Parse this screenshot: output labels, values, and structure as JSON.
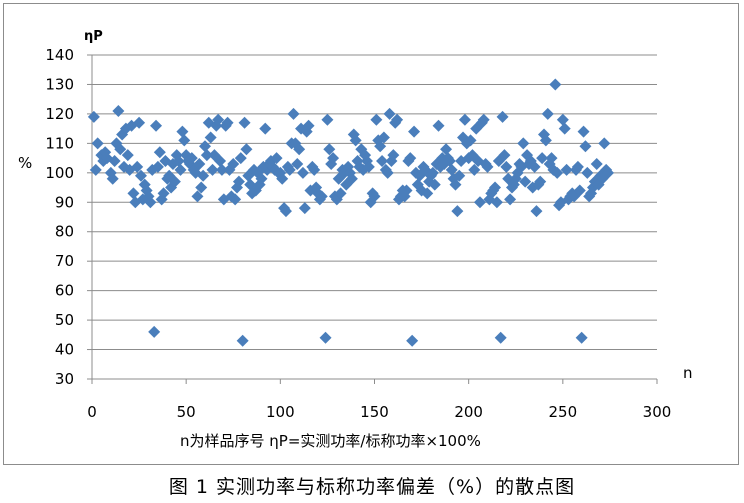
{
  "chart_data": {
    "type": "scatter",
    "title": "",
    "caption": "图 1 实测功率与标称功率偏差（%）的散点图",
    "ylabel_top": "ηP",
    "ylabel_unit": "%",
    "xlabel": "n",
    "footnote": "n为样品序号 ηP=实测功率/标称功率×100%",
    "xlim": [
      0,
      300
    ],
    "ylim": [
      30,
      140
    ],
    "xticks": [
      0,
      50,
      100,
      150,
      200,
      250,
      300
    ],
    "yticks": [
      30,
      40,
      50,
      60,
      70,
      80,
      90,
      100,
      110,
      120,
      130,
      140
    ],
    "grid": "horizontal",
    "marker_color": "#4a7ebb",
    "series": [
      {
        "points": [
          [
            1,
            119
          ],
          [
            2,
            101
          ],
          [
            3,
            110
          ],
          [
            5,
            106
          ],
          [
            6,
            104
          ],
          [
            7,
            107
          ],
          [
            8,
            105
          ],
          [
            10,
            100
          ],
          [
            11,
            98
          ],
          [
            12,
            104
          ],
          [
            13,
            110
          ],
          [
            14,
            121
          ],
          [
            15,
            108
          ],
          [
            16,
            113
          ],
          [
            17,
            102
          ],
          [
            18,
            115
          ],
          [
            19,
            106
          ],
          [
            20,
            101
          ],
          [
            21,
            116
          ],
          [
            22,
            93
          ],
          [
            23,
            90
          ],
          [
            24,
            102
          ],
          [
            25,
            117
          ],
          [
            26,
            99
          ],
          [
            27,
            91
          ],
          [
            28,
            96
          ],
          [
            29,
            94
          ],
          [
            30,
            92
          ],
          [
            31,
            90
          ],
          [
            32,
            101
          ],
          [
            33,
            46
          ],
          [
            34,
            116
          ],
          [
            35,
            102
          ],
          [
            36,
            107
          ],
          [
            37,
            91
          ],
          [
            38,
            93
          ],
          [
            39,
            104
          ],
          [
            40,
            98
          ],
          [
            41,
            99
          ],
          [
            42,
            95
          ],
          [
            43,
            103
          ],
          [
            44,
            97
          ],
          [
            45,
            106
          ],
          [
            46,
            104
          ],
          [
            47,
            101
          ],
          [
            48,
            114
          ],
          [
            49,
            111
          ],
          [
            50,
            106
          ],
          [
            51,
            104
          ],
          [
            52,
            103
          ],
          [
            53,
            105
          ],
          [
            54,
            101
          ],
          [
            55,
            100
          ],
          [
            56,
            92
          ],
          [
            57,
            103
          ],
          [
            58,
            95
          ],
          [
            59,
            99
          ],
          [
            60,
            109
          ],
          [
            61,
            106
          ],
          [
            62,
            117
          ],
          [
            63,
            112
          ],
          [
            64,
            101
          ],
          [
            65,
            106
          ],
          [
            66,
            116
          ],
          [
            67,
            118
          ],
          [
            68,
            104
          ],
          [
            69,
            101
          ],
          [
            70,
            91
          ],
          [
            71,
            116
          ],
          [
            72,
            117
          ],
          [
            73,
            101
          ],
          [
            74,
            92
          ],
          [
            75,
            103
          ],
          [
            76,
            91
          ],
          [
            77,
            95
          ],
          [
            78,
            97
          ],
          [
            79,
            105
          ],
          [
            80,
            43
          ],
          [
            81,
            117
          ],
          [
            82,
            108
          ],
          [
            83,
            99
          ],
          [
            84,
            96
          ],
          [
            85,
            93
          ],
          [
            86,
            101
          ],
          [
            87,
            94
          ],
          [
            88,
            100
          ],
          [
            89,
            96
          ],
          [
            90,
            98
          ],
          [
            91,
            102
          ],
          [
            92,
            115
          ],
          [
            93,
            101
          ],
          [
            94,
            103
          ],
          [
            95,
            104
          ],
          [
            96,
            102
          ],
          [
            97,
            101
          ],
          [
            98,
            105
          ],
          [
            99,
            100
          ],
          [
            100,
            100
          ],
          [
            101,
            98
          ],
          [
            102,
            88
          ],
          [
            103,
            87
          ],
          [
            104,
            102
          ],
          [
            105,
            101
          ],
          [
            106,
            110
          ],
          [
            107,
            120
          ],
          [
            108,
            110
          ],
          [
            109,
            103
          ],
          [
            110,
            108
          ],
          [
            111,
            115
          ],
          [
            112,
            100
          ],
          [
            113,
            88
          ],
          [
            114,
            114
          ],
          [
            115,
            116
          ],
          [
            116,
            94
          ],
          [
            117,
            102
          ],
          [
            118,
            101
          ],
          [
            119,
            95
          ],
          [
            120,
            93
          ],
          [
            121,
            91
          ],
          [
            122,
            92
          ],
          [
            124,
            44
          ],
          [
            125,
            118
          ],
          [
            126,
            108
          ],
          [
            127,
            103
          ],
          [
            128,
            105
          ],
          [
            129,
            92
          ],
          [
            130,
            91
          ],
          [
            131,
            98
          ],
          [
            132,
            93
          ],
          [
            133,
            101
          ],
          [
            134,
            100
          ],
          [
            135,
            96
          ],
          [
            136,
            102
          ],
          [
            137,
            100
          ],
          [
            138,
            98
          ],
          [
            139,
            113
          ],
          [
            140,
            111
          ],
          [
            141,
            104
          ],
          [
            142,
            102
          ],
          [
            143,
            108
          ],
          [
            144,
            101
          ],
          [
            145,
            106
          ],
          [
            146,
            104
          ],
          [
            147,
            102
          ],
          [
            148,
            90
          ],
          [
            149,
            93
          ],
          [
            150,
            92
          ],
          [
            151,
            118
          ],
          [
            152,
            111
          ],
          [
            153,
            109
          ],
          [
            154,
            104
          ],
          [
            155,
            112
          ],
          [
            156,
            101
          ],
          [
            157,
            100
          ],
          [
            158,
            120
          ],
          [
            159,
            104
          ],
          [
            160,
            106
          ],
          [
            161,
            117
          ],
          [
            162,
            118
          ],
          [
            163,
            91
          ],
          [
            164,
            92
          ],
          [
            165,
            94
          ],
          [
            166,
            92
          ],
          [
            167,
            94
          ],
          [
            168,
            104
          ],
          [
            169,
            105
          ],
          [
            170,
            43
          ],
          [
            171,
            114
          ],
          [
            172,
            100
          ],
          [
            173,
            96
          ],
          [
            174,
            99
          ],
          [
            175,
            94
          ],
          [
            176,
            102
          ],
          [
            177,
            101
          ],
          [
            178,
            93
          ],
          [
            179,
            97
          ],
          [
            180,
            99
          ],
          [
            181,
            100
          ],
          [
            182,
            96
          ],
          [
            183,
            103
          ],
          [
            184,
            116
          ],
          [
            185,
            102
          ],
          [
            186,
            105
          ],
          [
            187,
            103
          ],
          [
            188,
            108
          ],
          [
            189,
            105
          ],
          [
            190,
            104
          ],
          [
            191,
            101
          ],
          [
            192,
            98
          ],
          [
            193,
            96
          ],
          [
            194,
            87
          ],
          [
            195,
            99
          ],
          [
            196,
            104
          ],
          [
            197,
            112
          ],
          [
            198,
            118
          ],
          [
            199,
            110
          ],
          [
            200,
            105
          ],
          [
            201,
            111
          ],
          [
            202,
            106
          ],
          [
            203,
            101
          ],
          [
            204,
            115
          ],
          [
            205,
            104
          ],
          [
            206,
            90
          ],
          [
            207,
            117
          ],
          [
            208,
            118
          ],
          [
            209,
            103
          ],
          [
            210,
            102
          ],
          [
            211,
            91
          ],
          [
            212,
            93
          ],
          [
            213,
            94
          ],
          [
            214,
            95
          ],
          [
            215,
            90
          ],
          [
            216,
            104
          ],
          [
            217,
            44
          ],
          [
            218,
            119
          ],
          [
            219,
            106
          ],
          [
            220,
            102
          ],
          [
            221,
            98
          ],
          [
            222,
            91
          ],
          [
            223,
            95
          ],
          [
            224,
            96
          ],
          [
            225,
            98
          ],
          [
            226,
            100
          ],
          [
            227,
            103
          ],
          [
            228,
            102
          ],
          [
            229,
            110
          ],
          [
            230,
            97
          ],
          [
            231,
            106
          ],
          [
            232,
            103
          ],
          [
            233,
            104
          ],
          [
            234,
            95
          ],
          [
            235,
            102
          ],
          [
            236,
            87
          ],
          [
            237,
            96
          ],
          [
            238,
            97
          ],
          [
            239,
            105
          ],
          [
            240,
            113
          ],
          [
            241,
            111
          ],
          [
            242,
            120
          ],
          [
            243,
            103
          ],
          [
            244,
            105
          ],
          [
            245,
            101
          ],
          [
            246,
            130
          ],
          [
            247,
            100
          ],
          [
            248,
            89
          ],
          [
            249,
            90
          ],
          [
            250,
            118
          ],
          [
            251,
            115
          ],
          [
            252,
            101
          ],
          [
            253,
            91
          ],
          [
            254,
            92
          ],
          [
            255,
            93
          ],
          [
            256,
            92
          ],
          [
            257,
            101
          ],
          [
            258,
            102
          ],
          [
            259,
            94
          ],
          [
            260,
            44
          ],
          [
            261,
            114
          ],
          [
            262,
            109
          ],
          [
            263,
            100
          ],
          [
            264,
            92
          ],
          [
            265,
            93
          ],
          [
            266,
            95
          ],
          [
            267,
            97
          ],
          [
            268,
            103
          ],
          [
            269,
            96
          ],
          [
            270,
            99
          ],
          [
            271,
            98
          ],
          [
            272,
            110
          ],
          [
            273,
            101
          ],
          [
            274,
            100
          ]
        ]
      }
    ]
  }
}
